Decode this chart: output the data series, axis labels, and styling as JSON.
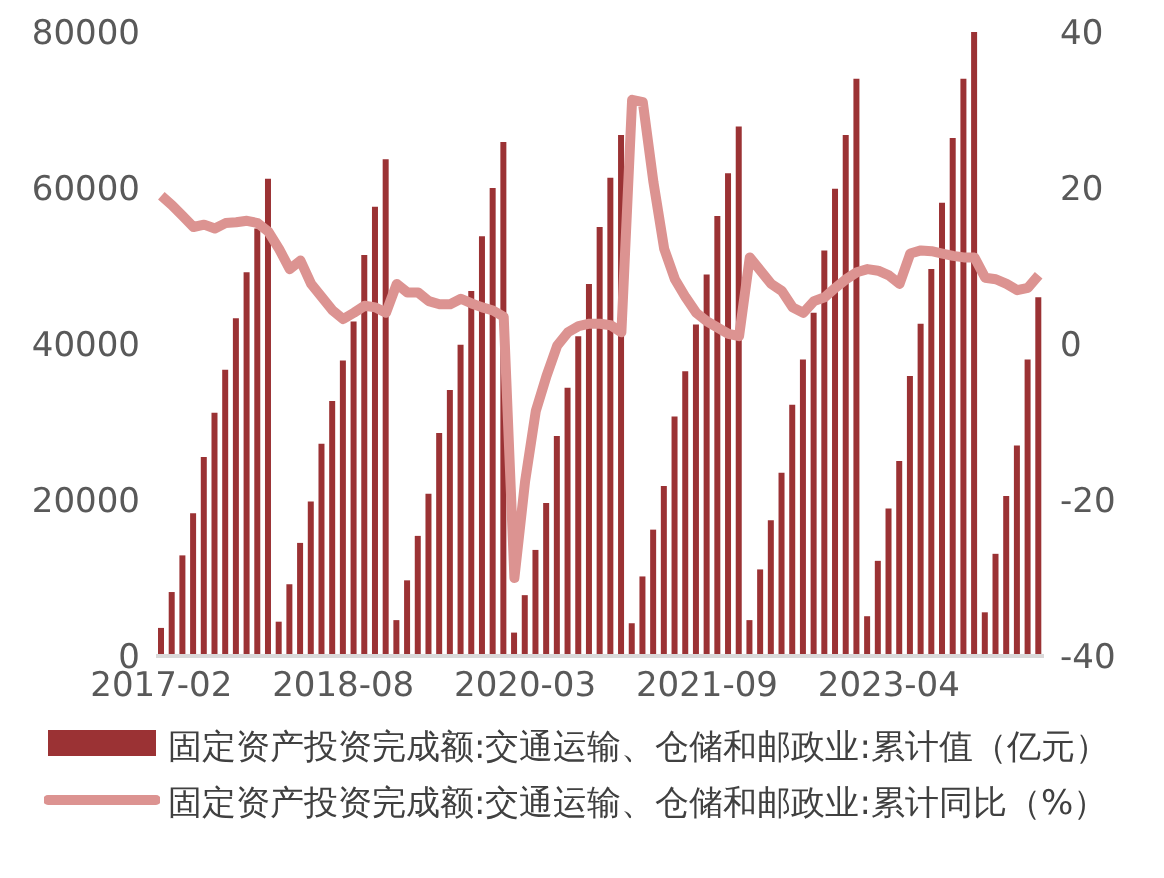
{
  "chart_data": {
    "type": "bar",
    "categories": [
      "2017-02",
      null,
      null,
      null,
      null,
      null,
      null,
      null,
      null,
      null,
      null,
      null,
      null,
      null,
      null,
      null,
      null,
      "2018-08",
      null,
      null,
      null,
      null,
      null,
      null,
      null,
      null,
      null,
      null,
      null,
      null,
      null,
      null,
      null,
      null,
      "2020-03",
      null,
      null,
      null,
      null,
      null,
      null,
      null,
      null,
      null,
      null,
      null,
      null,
      null,
      null,
      null,
      null,
      "2021-09",
      null,
      null,
      null,
      null,
      null,
      null,
      null,
      null,
      null,
      null,
      null,
      null,
      null,
      null,
      null,
      null,
      "2023-04",
      null,
      null,
      null,
      null,
      null,
      null,
      null,
      null,
      null,
      null,
      null,
      null,
      null,
      null
    ],
    "series": [
      {
        "name": "固定资产投资完成额:交通运输、仓储和邮政业:累计值（亿元）",
        "color": "#9b3234",
        "values": [
          3600,
          8200,
          12900,
          18300,
          25500,
          31200,
          36700,
          43300,
          49200,
          54800,
          61200,
          4400,
          9200,
          14500,
          19800,
          27200,
          32700,
          37900,
          42900,
          51400,
          57600,
          63700,
          4600,
          9700,
          15400,
          20800,
          28600,
          34100,
          39900,
          46800,
          53800,
          60000,
          65900,
          3000,
          7800,
          13600,
          19600,
          28200,
          34400,
          41000,
          47700,
          55000,
          61300,
          66800,
          4200,
          10200,
          16200,
          21800,
          30700,
          36500,
          42500,
          48900,
          56400,
          61900,
          67900,
          4600,
          11100,
          17400,
          23500,
          32200,
          38000,
          44000,
          52000,
          59900,
          66800,
          74000,
          5100,
          12200,
          18900,
          25000,
          35900,
          42600,
          49600,
          58100,
          66400,
          74000,
          80000,
          5600,
          13100,
          20500,
          27000,
          38000,
          46000
        ]
      },
      {
        "name": "固定资产投资完成额:交通运输、仓储和邮政业:累计同比（%）",
        "type": "line",
        "axis": "y2",
        "color": "#dc9391",
        "values": [
          19.0,
          17.8,
          16.4,
          15.0,
          15.3,
          14.8,
          15.5,
          15.6,
          15.8,
          15.5,
          14.4,
          12.2,
          9.6,
          10.7,
          7.7,
          6.0,
          4.3,
          3.2,
          4.0,
          4.9,
          4.7,
          4.0,
          7.7,
          6.6,
          6.6,
          5.5,
          5.1,
          5.1,
          5.8,
          5.2,
          4.7,
          4.3,
          3.5,
          -30.0,
          -17.6,
          -8.6,
          -4.1,
          -0.2,
          1.5,
          2.3,
          2.6,
          2.6,
          2.4,
          1.5,
          31.3,
          31.0,
          20.7,
          12.2,
          8.3,
          6.0,
          4.0,
          2.9,
          2.1,
          1.3,
          1.0,
          11.1,
          9.4,
          7.7,
          6.8,
          4.7,
          4.0,
          5.5,
          6.0,
          7.2,
          8.3,
          9.2,
          9.6,
          9.4,
          8.8,
          7.7,
          11.6,
          12.0,
          11.9,
          11.6,
          11.3,
          11.1,
          11.1,
          8.5,
          8.3,
          7.7,
          6.9,
          7.2,
          8.8
        ]
      }
    ],
    "ylim": [
      0,
      80000
    ],
    "yticks": [
      0,
      20000,
      40000,
      60000,
      80000
    ],
    "y2lim": [
      -40,
      40
    ],
    "y2ticks": [
      -40,
      -20,
      0,
      20,
      40
    ],
    "grid": false,
    "legend": "bottom",
    "marker": "none",
    "line_style": "solid"
  }
}
